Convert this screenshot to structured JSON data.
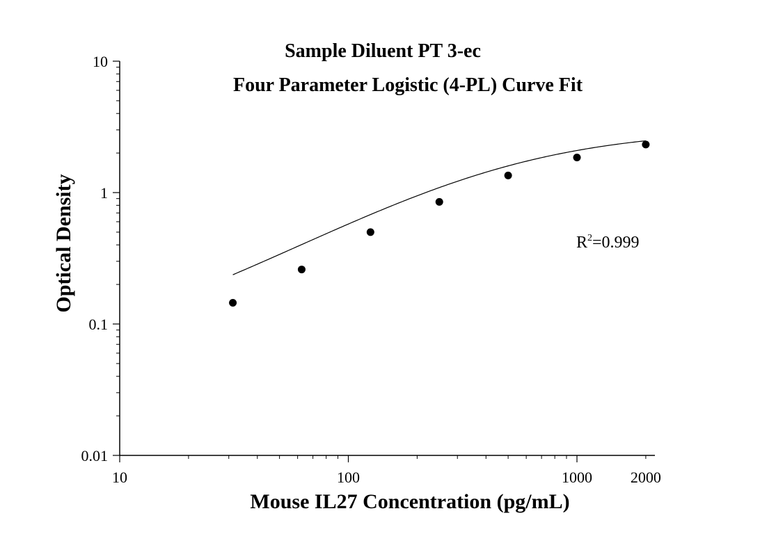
{
  "chart_data": {
    "type": "scatter",
    "title": "Sample Diluent PT 3-ec",
    "subtitle": "Four Parameter Logistic (4-PL) Curve Fit",
    "xlabel": "Mouse IL27 Concentration (pg/mL)",
    "ylabel": "Optical Density",
    "x_scale": "log",
    "y_scale": "log",
    "xlim": [
      10,
      2500
    ],
    "ylim": [
      0.01,
      10
    ],
    "x_ticks": [
      10,
      100,
      1000,
      2000
    ],
    "x_tick_labels": [
      "10",
      "100",
      "1000",
      "2000"
    ],
    "y_ticks": [
      0.01,
      0.1,
      1,
      10
    ],
    "y_tick_labels": [
      "0.01",
      "0.1",
      "1",
      "10"
    ],
    "points": {
      "x": [
        31.25,
        62.5,
        125,
        250,
        500,
        1000,
        2000
      ],
      "y": [
        0.145,
        0.26,
        0.5,
        0.85,
        1.35,
        1.85,
        2.32
      ]
    },
    "fit": {
      "model": "4-PL",
      "a": 0.05,
      "d": 3.05,
      "c": 470,
      "b": 1.0
    },
    "annotation": {
      "r_base": "R",
      "r_sup": "2",
      "r_value": "=0.999"
    },
    "grid": false,
    "legend": "none",
    "colors": {
      "marker": "#000000",
      "line": "#000000",
      "axis": "#000000"
    }
  }
}
